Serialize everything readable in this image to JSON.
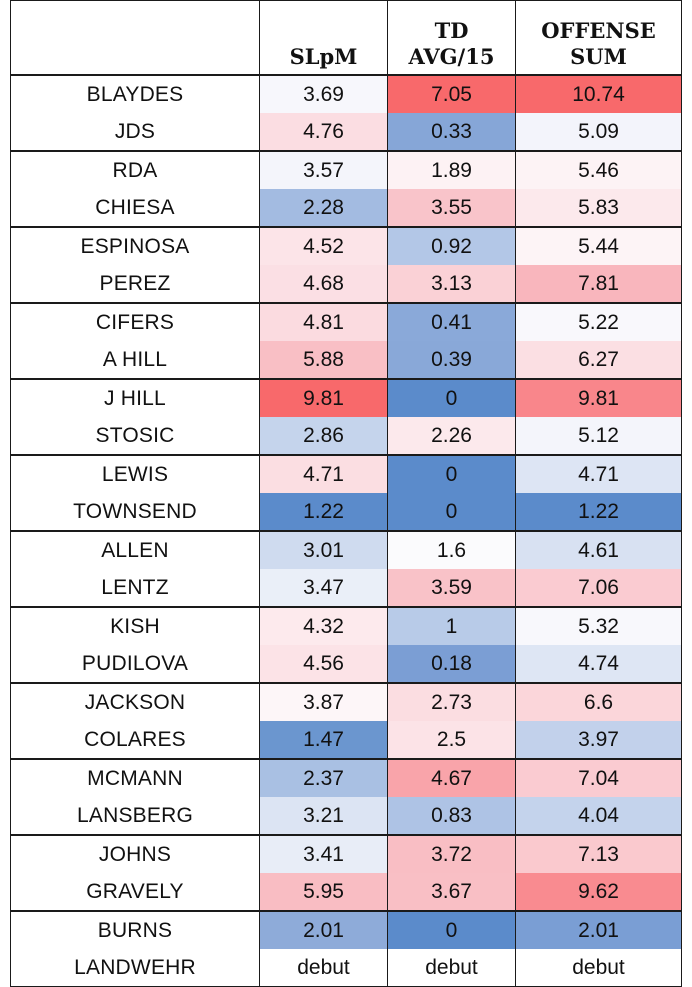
{
  "table": {
    "headers": [
      {
        "key": "name",
        "label": ""
      },
      {
        "key": "slpm",
        "label": "SLpM"
      },
      {
        "key": "td",
        "label": "TD\nAVG/15"
      },
      {
        "key": "offense",
        "label": "OFFENSE\nSUM"
      }
    ],
    "rows": [
      {
        "name": "BLAYDES",
        "slpm": "3.69",
        "td": "7.05",
        "offense": "10.74",
        "slpm_color": "#f7f7fc",
        "td_color": "#f8696b",
        "offense_color": "#f8696b"
      },
      {
        "name": "JDS",
        "slpm": "4.76",
        "td": "0.33",
        "offense": "5.09",
        "slpm_color": "#fbdde2",
        "td_color": "#86a6d7",
        "offense_color": "#f3f4fb"
      },
      {
        "name": "RDA",
        "slpm": "3.57",
        "td": "1.89",
        "offense": "5.46",
        "slpm_color": "#f4f5fb",
        "td_color": "#fdf2f4",
        "offense_color": "#fdf3f5"
      },
      {
        "name": "CHIESA",
        "slpm": "2.28",
        "td": "3.55",
        "offense": "5.83",
        "slpm_color": "#a3bbe1",
        "td_color": "#f9c4ca",
        "offense_color": "#fce9ec"
      },
      {
        "name": "ESPINOSA",
        "slpm": "4.52",
        "td": "0.92",
        "offense": "5.44",
        "slpm_color": "#fce4e8",
        "td_color": "#b3c7e7",
        "offense_color": "#fdf4f6"
      },
      {
        "name": "PEREZ",
        "slpm": "4.68",
        "td": "3.13",
        "offense": "7.81",
        "slpm_color": "#fbdfe4",
        "td_color": "#fad1d6",
        "offense_color": "#f9b6bd"
      },
      {
        "name": "CIFERS",
        "slpm": "4.81",
        "td": "0.41",
        "offense": "5.22",
        "slpm_color": "#fbdbe0",
        "td_color": "#8aa9d9",
        "offense_color": "#f9f8fc"
      },
      {
        "name": "A HILL",
        "slpm": "5.88",
        "td": "0.39",
        "offense": "6.27",
        "slpm_color": "#f9bfc5",
        "td_color": "#89a8d8",
        "offense_color": "#fbdfe3"
      },
      {
        "name": "J HILL",
        "slpm": "9.81",
        "td": "0",
        "offense": "9.81",
        "slpm_color": "#f8696b",
        "td_color": "#5b8bcb",
        "offense_color": "#f9868b"
      },
      {
        "name": "STOSIC",
        "slpm": "2.86",
        "td": "2.26",
        "offense": "5.12",
        "slpm_color": "#c5d4ec",
        "td_color": "#fce9ec",
        "offense_color": "#f4f5fb"
      },
      {
        "name": "LEWIS",
        "slpm": "4.71",
        "td": "0",
        "offense": "4.71",
        "slpm_color": "#fbdee2",
        "td_color": "#5b8bcb",
        "offense_color": "#dde5f4"
      },
      {
        "name": "TOWNSEND",
        "slpm": "1.22",
        "td": "0",
        "offense": "1.22",
        "slpm_color": "#5b8bcb",
        "td_color": "#5b8bcb",
        "offense_color": "#5b8bcb"
      },
      {
        "name": "ALLEN",
        "slpm": "3.01",
        "td": "1.6",
        "offense": "4.61",
        "slpm_color": "#cfdbef",
        "td_color": "#fbfbfd",
        "offense_color": "#d8e1f2"
      },
      {
        "name": "LENTZ",
        "slpm": "3.47",
        "td": "3.59",
        "offense": "7.06",
        "slpm_color": "#eaeff8",
        "td_color": "#f9c2c8",
        "offense_color": "#facbd1"
      },
      {
        "name": "KISH",
        "slpm": "4.32",
        "td": "1",
        "offense": "5.32",
        "slpm_color": "#fdeaed",
        "td_color": "#b8cbe8",
        "offense_color": "#f8f8fc"
      },
      {
        "name": "PUDILOVA",
        "slpm": "4.56",
        "td": "0.18",
        "offense": "4.74",
        "slpm_color": "#fce3e7",
        "td_color": "#7b9ed4",
        "offense_color": "#dee6f4"
      },
      {
        "name": "JACKSON",
        "slpm": "3.87",
        "td": "2.73",
        "offense": "6.6",
        "slpm_color": "#fdf6f8",
        "td_color": "#fbdde1",
        "offense_color": "#fbd6da"
      },
      {
        "name": "COLARES",
        "slpm": "1.47",
        "td": "2.5",
        "offense": "3.97",
        "slpm_color": "#6b96cf",
        "td_color": "#fce3e7",
        "offense_color": "#c2d1eb"
      },
      {
        "name": "MCMANN",
        "slpm": "2.37",
        "td": "4.67",
        "offense": "7.04",
        "slpm_color": "#a9c0e3",
        "td_color": "#f9a4aa",
        "offense_color": "#facbd1"
      },
      {
        "name": "LANSBERG",
        "slpm": "3.21",
        "td": "0.83",
        "offense": "4.04",
        "slpm_color": "#dce4f3",
        "td_color": "#aec3e5",
        "offense_color": "#c4d3ec"
      },
      {
        "name": "JOHNS",
        "slpm": "3.41",
        "td": "3.72",
        "offense": "7.13",
        "slpm_color": "#e8edf7",
        "td_color": "#f9bec4",
        "offense_color": "#fac9ce"
      },
      {
        "name": "GRAVELY",
        "slpm": "5.95",
        "td": "3.67",
        "offense": "9.62",
        "slpm_color": "#f9bdc3",
        "td_color": "#f9bfc5",
        "offense_color": "#f98b90"
      },
      {
        "name": "BURNS",
        "slpm": "2.01",
        "td": "0",
        "offense": "2.01",
        "slpm_color": "#8eabd9",
        "td_color": "#5b8bcb",
        "offense_color": "#7a9ed4"
      },
      {
        "name": "LANDWEHR",
        "slpm": "debut",
        "td": "debut",
        "offense": "debut",
        "slpm_color": "#ffffff",
        "td_color": "#ffffff",
        "offense_color": "#ffffff"
      }
    ]
  }
}
